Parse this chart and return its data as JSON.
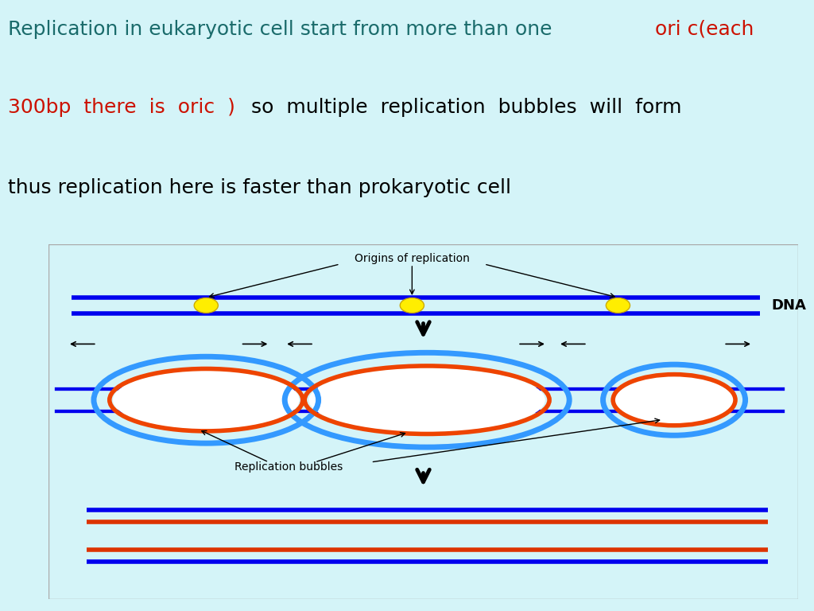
{
  "bg_top": "#d4f4f8",
  "bg_bottom": "#ffffff",
  "text_color_teal": "#1a6b6b",
  "text_color_red": "#cc1100",
  "text_color_black": "#000000",
  "dna_blue": "#0000ee",
  "dna_red": "#dd3300",
  "bubble_blue": "#3399ff",
  "bubble_red": "#ee4400",
  "yellow": "#ffee00",
  "label_origins": "Origins of replication",
  "label_dna": "DNA",
  "label_bubbles": "Replication bubbles",
  "text_line1_teal": "Replication in eukaryotic cell start from more than one ",
  "text_line1_red": "ori c(each",
  "text_line2_red": "300bp  there  is  oric  )",
  "text_line2_black": "   so  multiple  replication  bubbles  will  form",
  "text_line3": "thus replication here is faster than prokaryotic cell"
}
